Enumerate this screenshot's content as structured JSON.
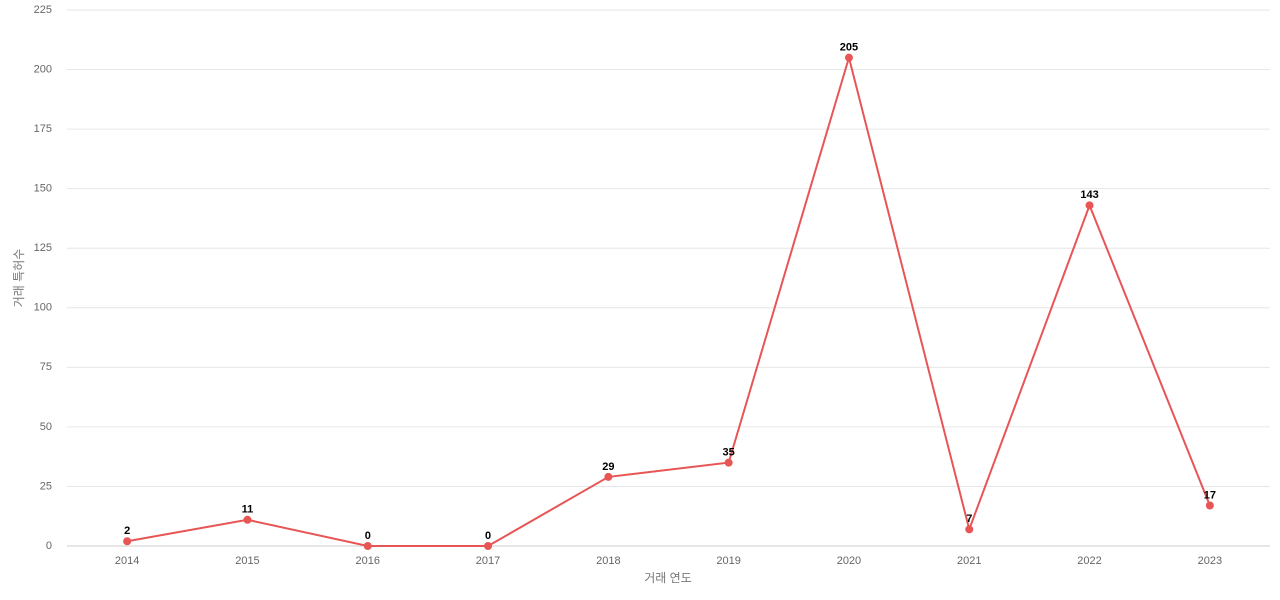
{
  "chart_data": {
    "type": "line",
    "x_label": "거래 연도",
    "y_label": "거래 특허수",
    "categories": [
      "2014",
      "2015",
      "2016",
      "2017",
      "2018",
      "2019",
      "2020",
      "2021",
      "2022",
      "2023"
    ],
    "values": [
      2,
      11,
      0,
      0,
      29,
      35,
      205,
      7,
      143,
      17
    ],
    "color": "#e85555",
    "ylim": [
      0,
      225
    ],
    "yticks": [
      0,
      25,
      50,
      75,
      100,
      125,
      150,
      175,
      200,
      225
    ],
    "grid": true
  }
}
